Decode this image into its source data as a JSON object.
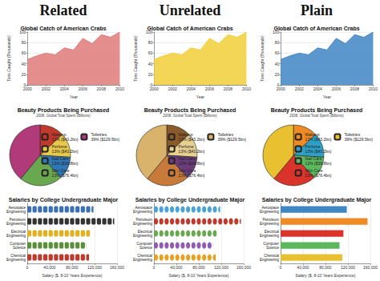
{
  "column_titles": [
    "Related",
    "Unrelated",
    "Plain"
  ],
  "chart_data": [
    {
      "type": "area",
      "title": "Global Catch of American Crabs",
      "x_label": "Year",
      "y_label": "Tons Caught (Thousands)",
      "x": [
        2000,
        2001,
        2002,
        2003,
        2004,
        2005,
        2006,
        2007,
        2008,
        2009,
        2010
      ],
      "values": [
        48,
        55,
        60,
        57,
        70,
        66,
        88,
        78,
        95,
        90,
        100
      ],
      "xlim": [
        2000,
        2010
      ],
      "xticks": [
        2000,
        2002,
        2004,
        2006,
        2008,
        2010
      ],
      "ylim": [
        0,
        100
      ],
      "yticks": [
        0,
        20,
        40,
        60,
        80,
        100
      ],
      "grid": true,
      "color": "#e07a7a"
    },
    {
      "type": "area",
      "title": "Global Catch of American Crabs",
      "x_label": "Year",
      "y_label": "Tons Caught (Thousands)",
      "x": [
        2000,
        2001,
        2002,
        2003,
        2004,
        2005,
        2006,
        2007,
        2008,
        2009,
        2010
      ],
      "values": [
        48,
        55,
        60,
        57,
        70,
        66,
        88,
        78,
        95,
        90,
        100
      ],
      "xlim": [
        2000,
        2010
      ],
      "xticks": [
        2000,
        2002,
        2004,
        2006,
        2008,
        2010
      ],
      "ylim": [
        0,
        100
      ],
      "yticks": [
        0,
        20,
        40,
        60,
        80,
        100
      ],
      "grid": true,
      "color": "#f2cf3a"
    },
    {
      "type": "area",
      "title": "Global Catch of American Crabs",
      "x_label": "Year",
      "y_label": "Tons Caught (Thousands)",
      "x": [
        2000,
        2001,
        2002,
        2003,
        2004,
        2005,
        2006,
        2007,
        2008,
        2009,
        2010
      ],
      "values": [
        48,
        55,
        60,
        57,
        70,
        66,
        88,
        78,
        95,
        90,
        100
      ],
      "xlim": [
        2000,
        2010
      ],
      "xticks": [
        2000,
        2002,
        2004,
        2006,
        2008,
        2010
      ],
      "ylim": [
        0,
        100
      ],
      "yticks": [
        0,
        20,
        40,
        60,
        80,
        100
      ],
      "grid": true,
      "color": "#3f86c4"
    },
    {
      "type": "pie",
      "title": "Beauty Products Being Purchased",
      "subtitle": "2008, Global Total Spent (Billions)",
      "categories": [
        "Makeup",
        "Perfume",
        "Nail Care",
        "Skin Care",
        "Toiletries"
      ],
      "values": [
        13,
        13,
        12,
        23,
        39
      ],
      "value_labels": [
        "13% ($43.2bn)",
        "13% ($43.2bn)",
        "12% ($39.8bn)",
        "23% ($76.4bn)",
        "39% ($129.5bn)"
      ],
      "legend": "right",
      "colors": [
        "#c0392b",
        "#e8c84a",
        "#2f78b5",
        "#6aa84f",
        "#b03a7a"
      ]
    },
    {
      "type": "pie",
      "title": "Beauty Products Being Purchased",
      "subtitle": "2008, Global Total Spent (Billions)",
      "categories": [
        "Makeup",
        "Perfume",
        "Nail Care",
        "Skin Care",
        "Toiletries"
      ],
      "values": [
        13,
        13,
        12,
        23,
        39
      ],
      "value_labels": [
        "13% ($43.2bn)",
        "13% ($43.2bn)",
        "12% ($39.8bn)",
        "23% ($76.4bn)",
        "39% ($129.5bn)"
      ],
      "legend": "right",
      "colors": [
        "#8b5a2b",
        "#e8d090",
        "#6a3d7a",
        "#c87a3a",
        "#d9b36c"
      ]
    },
    {
      "type": "pie",
      "title": "Beauty Products Being Purchased",
      "subtitle": "2008, Global Total Spent (Billions)",
      "categories": [
        "Makeup",
        "Perfume",
        "Nail Care",
        "Skin Care",
        "Toiletries"
      ],
      "values": [
        13,
        13,
        12,
        23,
        39
      ],
      "value_labels": [
        "13% ($43.2bn)",
        "13% ($43.2bn)",
        "12% ($39.8bn)",
        "23% ($76.4bn)",
        "39% ($129.5bn)"
      ],
      "legend": "right",
      "colors": [
        "#f08a24",
        "#2ea0c8",
        "#5cb85c",
        "#d9332c",
        "#e8c030"
      ]
    },
    {
      "type": "bar",
      "orientation": "horizontal",
      "title": "Salaries by College Undergraduate Major",
      "x_label": "Salary ($, 8-10 Years Experience)",
      "categories": [
        "Aerospace Engineering",
        "Petroleum Engineering",
        "Electrical Engineering",
        "Computer Science",
        "Chemical Engineering"
      ],
      "values": [
        118000,
        155000,
        112000,
        105000,
        110000
      ],
      "xlim": [
        0,
        160000
      ],
      "xticks": [
        0,
        {
          "value": 40000,
          "label": "40,000"
        },
        {
          "value": 80000,
          "label": "80,000"
        },
        {
          "value": 120000,
          "label": "120,000"
        },
        {
          "value": 160000,
          "label": "160,000"
        }
      ],
      "grid": true,
      "marker": "roundRect",
      "colors": [
        "#3b6fb6",
        "#333333",
        "#e0b020",
        "#5a8f3a",
        "#c0392b"
      ]
    },
    {
      "type": "bar",
      "orientation": "horizontal",
      "title": "Salaries by College Undergraduate Major",
      "x_label": "Salary ($, 8-10 Years Experience)",
      "categories": [
        "Aerospace Engineering",
        "Petroleum Engineering",
        "Electrical Engineering",
        "Computer Science",
        "Chemical Engineering"
      ],
      "values": [
        118000,
        155000,
        112000,
        105000,
        110000
      ],
      "xlim": [
        0,
        160000
      ],
      "xticks": [
        0,
        {
          "value": 40000,
          "label": "40,000"
        },
        {
          "value": 80000,
          "label": "80,000"
        },
        {
          "value": 120000,
          "label": "120,000"
        },
        {
          "value": 160000,
          "label": "160,000"
        }
      ],
      "grid": true,
      "marker": "circle",
      "colors": [
        "#4aa3d8",
        "#c0392b",
        "#6aa84f",
        "#8e5bb5",
        "#e8a020"
      ]
    },
    {
      "type": "bar",
      "orientation": "horizontal",
      "title": "Salaries by College Undergraduate Major",
      "x_label": "Salary ($, 8-10 Years Experience)",
      "categories": [
        "Aerospace Engineering",
        "Petroleum Engineering",
        "Electrical Engineering",
        "Computer Science",
        "Chemical Engineering"
      ],
      "values": [
        118000,
        155000,
        112000,
        105000,
        110000
      ],
      "xlim": [
        0,
        160000
      ],
      "xticks": [
        0,
        {
          "value": 40000,
          "label": "40,000"
        },
        {
          "value": 80000,
          "label": "80,000"
        },
        {
          "value": 120000,
          "label": "120,000"
        },
        {
          "value": 160000,
          "label": "160,000"
        }
      ],
      "grid": true,
      "colors": [
        "#3f86c4",
        "#f08a24",
        "#d9332c",
        "#5cb85c",
        "#e8c030"
      ]
    }
  ]
}
